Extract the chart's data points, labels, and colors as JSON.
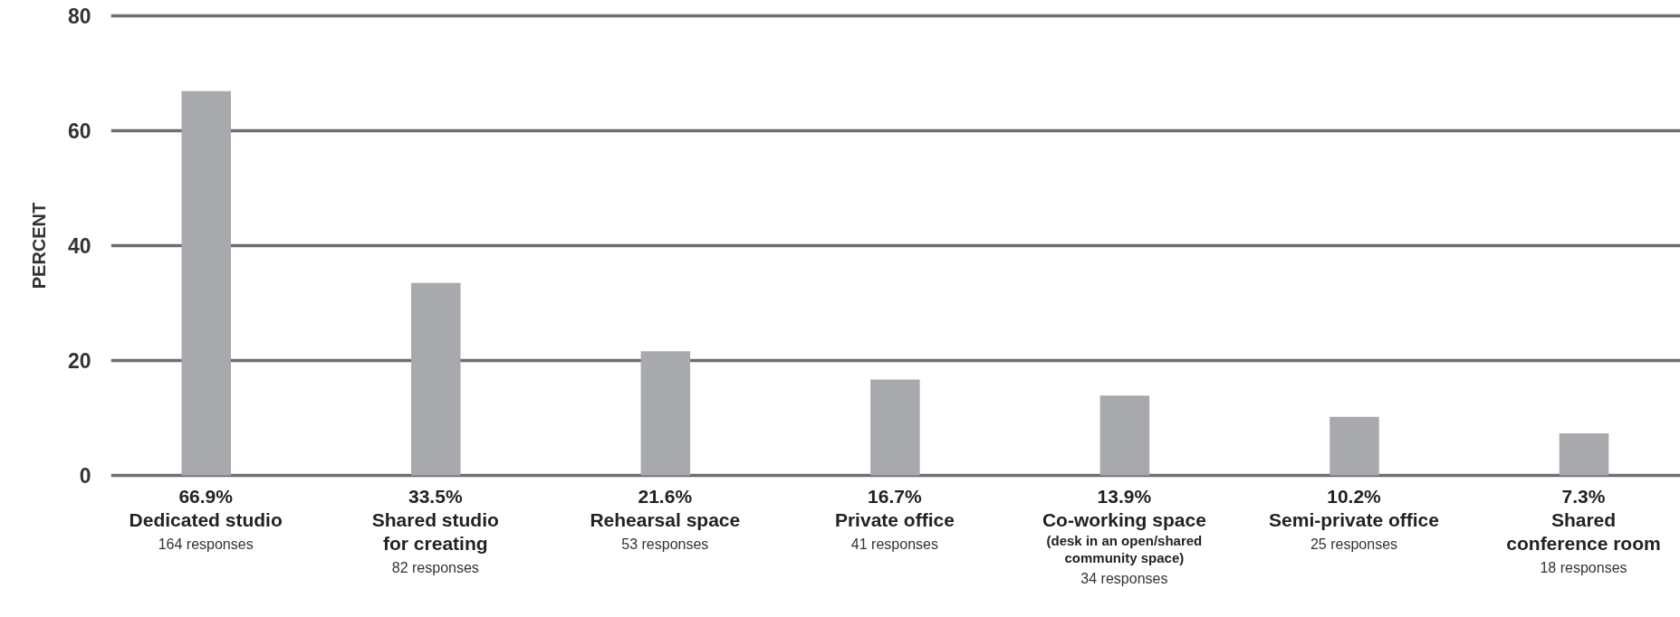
{
  "chart_data": {
    "type": "bar",
    "ylabel": "PERCENT",
    "categories": [
      "Dedicated studio",
      "Shared studio\nfor creating",
      "Rehearsal space",
      "Private office",
      "Co-working space\n(desk in an open/shared\ncommunity space)",
      "Semi-private office",
      "Shared\nconference room"
    ],
    "values": [
      66.9,
      33.5,
      21.6,
      16.7,
      13.9,
      10.2,
      7.3
    ],
    "value_labels": [
      "66.9%",
      "33.5%",
      "21.6%",
      "16.7%",
      "13.9%",
      "10.2%",
      "7.3%"
    ],
    "color": "#a7a9ac",
    "annotations": [
      "164 responses",
      "82 responses",
      "53 responses",
      "41 responses",
      "34 responses",
      "25 responses",
      "18 responses"
    ],
    "ylim": [
      0,
      80
    ],
    "yticks": [
      0,
      20,
      40,
      60,
      80
    ],
    "grid": "y"
  }
}
